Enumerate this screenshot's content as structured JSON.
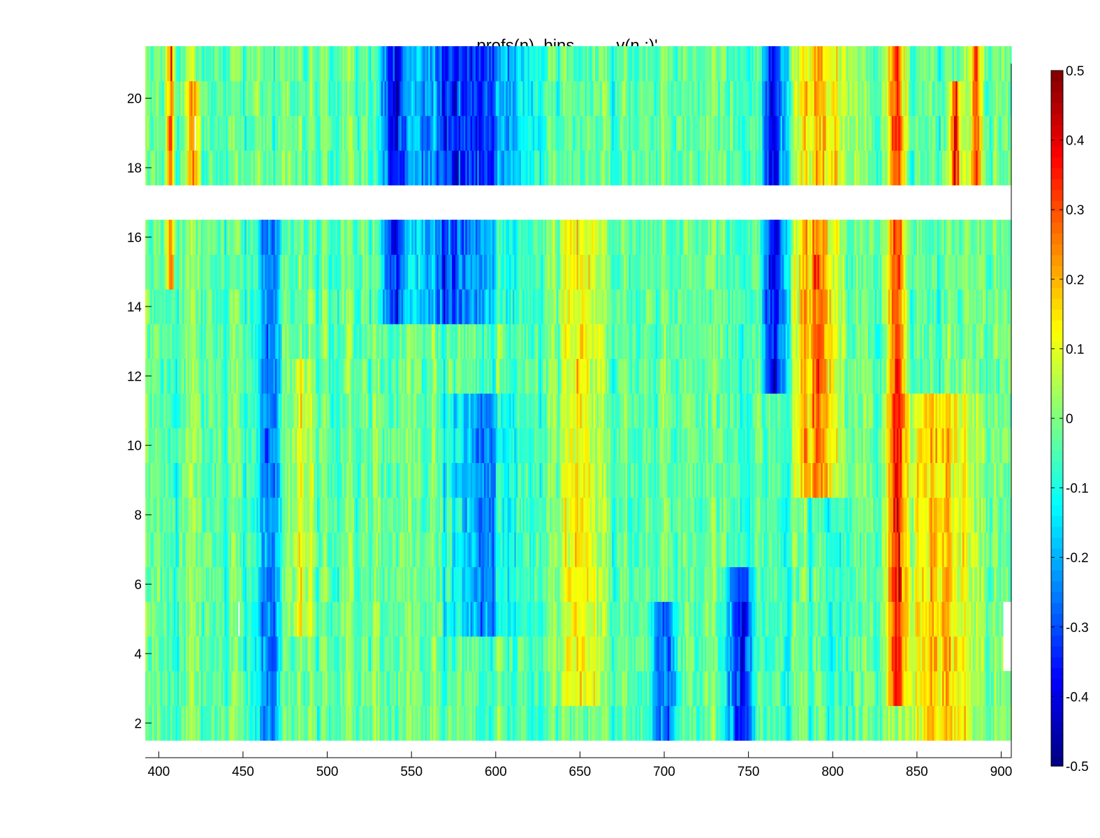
{
  "chart_data": {
    "type": "heatmap",
    "title": "profs(n), bins,        v(n,:)'",
    "xlabel": "",
    "ylabel": "",
    "xlim": [
      392,
      906
    ],
    "ylim": [
      1,
      21
    ],
    "x_ticks": [
      400,
      450,
      500,
      550,
      600,
      650,
      700,
      750,
      800,
      850,
      900
    ],
    "x_tick_labels": [
      "400",
      "450",
      "500",
      "550",
      "600",
      "650",
      "700",
      "750",
      "800",
      "850",
      "900"
    ],
    "y_ticks": [
      2,
      4,
      6,
      8,
      10,
      12,
      14,
      16,
      18,
      20
    ],
    "y_tick_labels": [
      "2",
      "4",
      "6",
      "8",
      "10",
      "12",
      "14",
      "16",
      "18",
      "20"
    ],
    "rows": [
      2,
      3,
      4,
      5,
      6,
      7,
      8,
      9,
      10,
      11,
      12,
      13,
      14,
      15,
      16,
      18,
      19,
      20,
      21
    ],
    "missing_rows": [
      17
    ],
    "bin_width": 1,
    "colormap": "jet",
    "clim": [
      -0.5,
      0.5
    ],
    "colorbar_ticks": [
      0.5,
      0.4,
      0.3,
      0.2,
      0.1,
      0,
      -0.1,
      -0.2,
      -0.3,
      -0.4,
      -0.5
    ],
    "colorbar_labels": [
      "0.5",
      "0.4",
      "0.3",
      "0.2",
      "0.1",
      "0",
      "-0.1",
      "-0.2",
      "-0.3",
      "-0.4",
      "-0.5"
    ],
    "grid": false,
    "colorbar_position": "right",
    "features": [
      {
        "x_center": 407,
        "x_width": 3,
        "row_range": [
          15,
          21
        ],
        "value": 0.35
      },
      {
        "x_center": 420,
        "x_width": 5,
        "row_range": [
          18,
          20
        ],
        "value": 0.2
      },
      {
        "x_center": 465,
        "x_width": 10,
        "row_range": [
          2,
          16
        ],
        "value": -0.25
      },
      {
        "x_center": 485,
        "x_width": 8,
        "row_range": [
          5,
          12
        ],
        "value": 0.12
      },
      {
        "x_center": 540,
        "x_width": 10,
        "row_range": [
          14,
          21
        ],
        "value": -0.3
      },
      {
        "x_center": 580,
        "x_width": 40,
        "row_range": [
          17,
          21
        ],
        "value": -0.33
      },
      {
        "x_center": 575,
        "x_width": 30,
        "row_range": [
          14,
          16
        ],
        "value": -0.28
      },
      {
        "x_center": 590,
        "x_width": 20,
        "row_range": [
          5,
          11
        ],
        "value": -0.2
      },
      {
        "x_center": 650,
        "x_width": 15,
        "row_range": [
          3,
          16
        ],
        "value": 0.18
      },
      {
        "x_center": 700,
        "x_width": 8,
        "row_range": [
          2,
          5
        ],
        "value": -0.3
      },
      {
        "x_center": 745,
        "x_width": 10,
        "row_range": [
          2,
          6
        ],
        "value": -0.3
      },
      {
        "x_center": 765,
        "x_width": 8,
        "row_range": [
          12,
          21
        ],
        "value": -0.35
      },
      {
        "x_center": 792,
        "x_width": 16,
        "row_range": [
          9,
          16
        ],
        "value": 0.32
      },
      {
        "x_center": 795,
        "x_width": 20,
        "row_range": [
          17,
          21
        ],
        "value": 0.25
      },
      {
        "x_center": 838,
        "x_width": 6,
        "row_range": [
          3,
          21
        ],
        "value": 0.35
      },
      {
        "x_center": 862,
        "x_width": 25,
        "row_range": [
          2,
          11
        ],
        "value": 0.22
      },
      {
        "x_center": 873,
        "x_width": 4,
        "row_range": [
          17,
          20
        ],
        "value": 0.38
      },
      {
        "x_center": 885,
        "x_width": 4,
        "row_range": [
          17,
          21
        ],
        "value": 0.35
      }
    ],
    "missing_cells": [
      {
        "x": [
          447,
          448
        ],
        "rows": [
          5
        ]
      },
      {
        "x": [
          421,
          422
        ],
        "rows": [
          19
        ]
      },
      {
        "x": [
          901,
          906
        ],
        "rows": [
          4,
          5
        ]
      }
    ]
  }
}
